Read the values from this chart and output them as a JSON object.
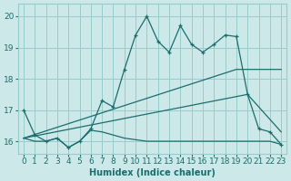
{
  "xlabel": "Humidex (Indice chaleur)",
  "background_color": "#cce8e8",
  "grid_color": "#99cccc",
  "line_color": "#1a6e6e",
  "xlim": [
    -0.5,
    23.5
  ],
  "ylim": [
    15.6,
    20.4
  ],
  "yticks": [
    16,
    17,
    18,
    19,
    20
  ],
  "xticks": [
    0,
    1,
    2,
    3,
    4,
    5,
    6,
    7,
    8,
    9,
    10,
    11,
    12,
    13,
    14,
    15,
    16,
    17,
    18,
    19,
    20,
    21,
    22,
    23
  ],
  "series1_x": [
    0,
    1,
    2,
    3,
    4,
    5,
    6,
    7,
    8,
    9,
    10,
    11,
    12,
    13,
    14,
    15,
    16,
    17,
    18,
    19,
    20,
    21,
    22,
    23
  ],
  "series1_y": [
    17.0,
    16.2,
    16.0,
    16.1,
    15.8,
    16.0,
    16.4,
    17.3,
    17.1,
    18.3,
    19.4,
    20.0,
    19.2,
    18.85,
    19.7,
    19.1,
    18.85,
    19.1,
    19.4,
    19.35,
    17.5,
    16.4,
    16.3,
    15.9
  ],
  "series2_x": [
    0,
    1,
    2,
    3,
    4,
    5,
    6,
    7,
    8,
    9,
    10,
    11,
    12,
    13,
    14,
    15,
    16,
    17,
    18,
    19,
    20,
    21,
    22,
    23
  ],
  "series2_y": [
    16.1,
    16.0,
    16.0,
    16.1,
    15.8,
    16.0,
    16.35,
    16.3,
    16.2,
    16.1,
    16.05,
    16.0,
    16.0,
    16.0,
    16.0,
    16.0,
    16.0,
    16.0,
    16.0,
    16.0,
    16.0,
    16.0,
    16.0,
    15.9
  ],
  "series3_x": [
    0,
    19,
    23
  ],
  "series3_y": [
    16.1,
    18.3,
    18.3
  ],
  "series4_x": [
    0,
    20,
    23
  ],
  "series4_y": [
    16.1,
    17.5,
    16.3
  ],
  "font_size": 6.5
}
